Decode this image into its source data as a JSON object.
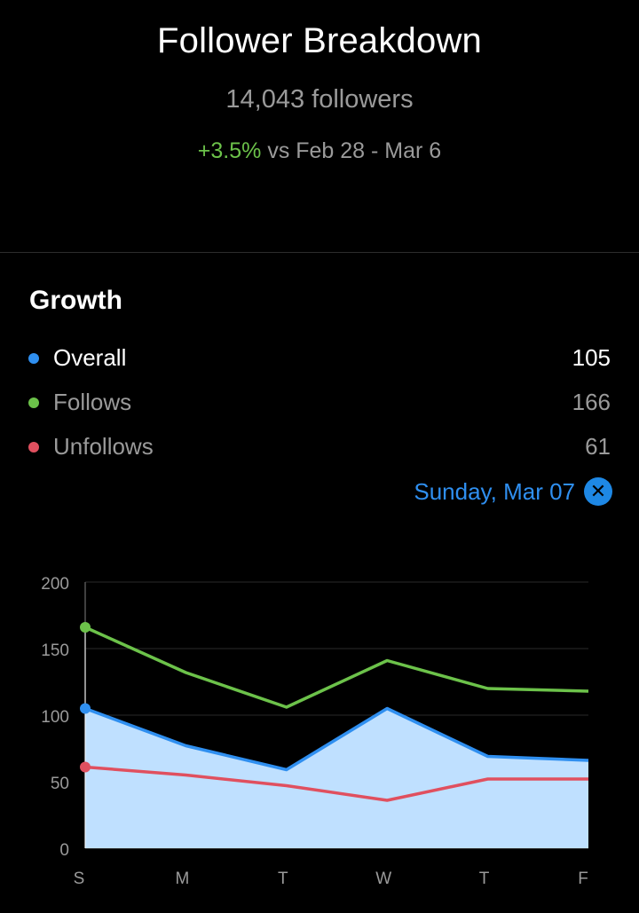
{
  "header": {
    "title": "Follower Breakdown",
    "followers": "14,043 followers",
    "change_pct": "+3.5%",
    "change_period": "vs Feb 28 - Mar 6"
  },
  "growth": {
    "title": "Growth",
    "legend": [
      {
        "label": "Overall",
        "value": "105",
        "color": "#2f8ff0"
      },
      {
        "label": "Follows",
        "value": "166",
        "color": "#6cc24a"
      },
      {
        "label": "Unfollows",
        "value": "61",
        "color": "#e0505f"
      }
    ],
    "selected_date": "Sunday, Mar 07",
    "close_icon": "close-icon"
  },
  "chart_data": {
    "type": "area",
    "categories": [
      "S",
      "M",
      "T",
      "W",
      "T",
      "F"
    ],
    "yticks": [
      "200",
      "150",
      "100",
      "50",
      "0"
    ],
    "ylim": [
      0,
      200
    ],
    "selected_index": 0,
    "series": [
      {
        "name": "Follows",
        "color": "#6cc24a",
        "fill": false,
        "values": [
          166,
          132,
          106,
          141,
          120,
          118
        ]
      },
      {
        "name": "Overall",
        "color": "#2f8ff0",
        "fill": true,
        "fill_color": "#bfe0ff",
        "values": [
          105,
          77,
          59,
          105,
          69,
          66
        ]
      },
      {
        "name": "Unfollows",
        "color": "#e0505f",
        "fill": false,
        "values": [
          61,
          55,
          47,
          36,
          52,
          52
        ]
      }
    ]
  }
}
